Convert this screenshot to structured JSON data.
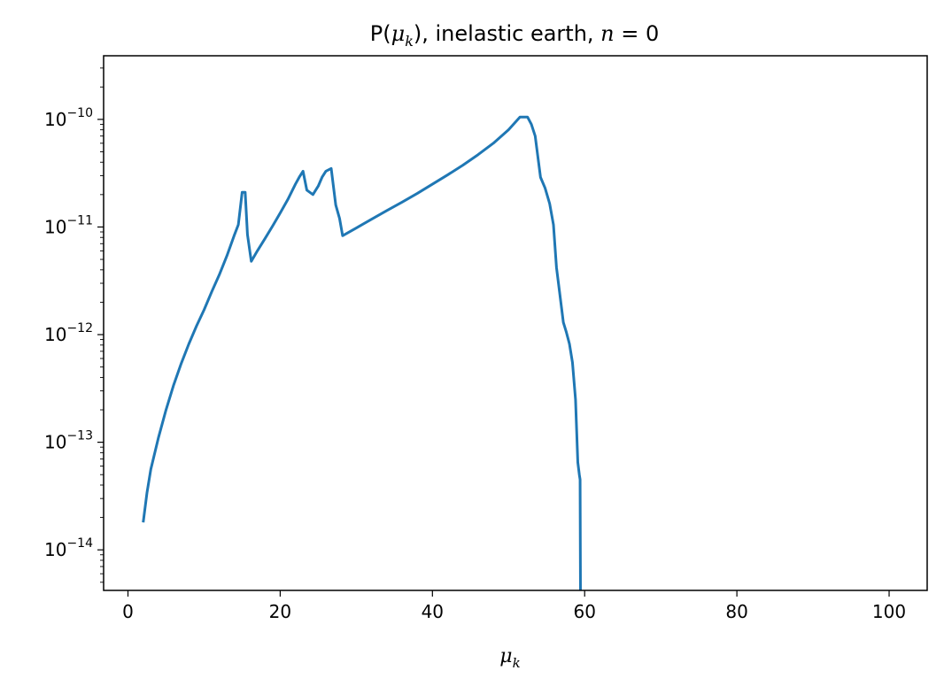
{
  "chart_data": {
    "type": "line",
    "title": "P(μₖ), inelastic earth, n = 0",
    "title_parts": {
      "prefix": "P(",
      "mu": "μ",
      "sub": "k",
      "middle": "), inelastic earth, ",
      "n": "n",
      "suffix": " = 0"
    },
    "xlabel": "μₖ",
    "xlabel_parts": {
      "mu": "μ",
      "sub": "k"
    },
    "ylabel": "",
    "xscale": "linear",
    "yscale": "log",
    "xlim": [
      -3.2,
      105
    ],
    "ylim": [
      4.2e-15,
      3.9e-10
    ],
    "x_ticks": [
      0,
      20,
      40,
      60,
      80,
      100
    ],
    "y_ticks": [
      1e-14,
      1e-13,
      1e-12,
      1e-11,
      1e-10
    ],
    "y_tick_labels": [
      {
        "base": "10",
        "exp": "−14"
      },
      {
        "base": "10",
        "exp": "−13"
      },
      {
        "base": "10",
        "exp": "−12"
      },
      {
        "base": "10",
        "exp": "−11"
      },
      {
        "base": "10",
        "exp": "−10"
      }
    ],
    "grid": false,
    "legend": "none",
    "series": [
      {
        "color": "#1f77b4",
        "points": [
          [
            2,
            1.8e-14
          ],
          [
            2.5,
            3.4e-14
          ],
          [
            3,
            5.6e-14
          ],
          [
            4,
            1.1e-13
          ],
          [
            5,
            2e-13
          ],
          [
            6,
            3.4e-13
          ],
          [
            7,
            5.4e-13
          ],
          [
            8,
            8.2e-13
          ],
          [
            9,
            1.2e-12
          ],
          [
            10,
            1.7e-12
          ],
          [
            11,
            2.5e-12
          ],
          [
            12,
            3.6e-12
          ],
          [
            13,
            5.4e-12
          ],
          [
            14,
            8.5e-12
          ],
          [
            14.5,
            1.05e-11
          ],
          [
            15,
            2.1e-11
          ],
          [
            15.4,
            2.1e-11
          ],
          [
            15.7,
            8.5e-12
          ],
          [
            16.2,
            4.8e-12
          ],
          [
            17,
            6e-12
          ],
          [
            18,
            7.8e-12
          ],
          [
            19,
            1.02e-11
          ],
          [
            20,
            1.35e-11
          ],
          [
            21,
            1.8e-11
          ],
          [
            22,
            2.5e-11
          ],
          [
            22.5,
            2.9e-11
          ],
          [
            23,
            3.3e-11
          ],
          [
            23.5,
            2.2e-11
          ],
          [
            24.3,
            2e-11
          ],
          [
            25,
            2.4e-11
          ],
          [
            25.5,
            2.9e-11
          ],
          [
            26,
            3.3e-11
          ],
          [
            26.7,
            3.5e-11
          ],
          [
            27.3,
            1.6e-11
          ],
          [
            27.8,
            1.2e-11
          ],
          [
            28.2,
            8.3e-12
          ],
          [
            30,
            9.8e-12
          ],
          [
            32,
            1.18e-11
          ],
          [
            34,
            1.42e-11
          ],
          [
            36,
            1.7e-11
          ],
          [
            38,
            2.05e-11
          ],
          [
            40,
            2.5e-11
          ],
          [
            42,
            3.05e-11
          ],
          [
            44,
            3.75e-11
          ],
          [
            46,
            4.7e-11
          ],
          [
            48,
            6e-11
          ],
          [
            50,
            8e-11
          ],
          [
            51.5,
            1.05e-10
          ],
          [
            52.5,
            1.05e-10
          ],
          [
            53,
            9e-11
          ],
          [
            53.5,
            7e-11
          ],
          [
            54.2,
            2.9e-11
          ],
          [
            54.8,
            2.3e-11
          ],
          [
            55.4,
            1.65e-11
          ],
          [
            55.9,
            1.05e-11
          ],
          [
            56.3,
            4.2e-12
          ],
          [
            56.7,
            2.5e-12
          ],
          [
            57.2,
            1.3e-12
          ],
          [
            57.6,
            1.05e-12
          ],
          [
            58.0,
            8.2e-13
          ],
          [
            58.4,
            5.5e-13
          ],
          [
            58.8,
            2.5e-13
          ],
          [
            59.1,
            6.5e-14
          ],
          [
            59.3,
            5e-14
          ],
          [
            59.4,
            4.5e-14
          ],
          [
            59.45,
            4.2e-15
          ]
        ]
      }
    ]
  }
}
